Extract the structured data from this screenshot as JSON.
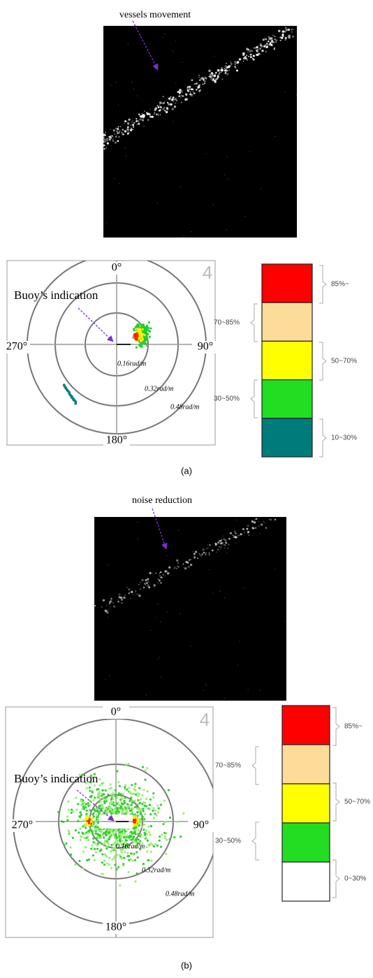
{
  "panels": [
    {
      "image_annotation": "vessels movement",
      "polar": {
        "north": "0°",
        "east": "90°",
        "south": "180°",
        "west": "270°",
        "rings": [
          "0.16rad/m",
          "0.32rad/m",
          "0.48rad/m"
        ],
        "annotation": "Buoy’s indication",
        "corner_mark": "4"
      },
      "legend": {
        "right": [
          "85%~",
          "50~70%",
          "10~30%"
        ],
        "left": [
          "70~85%",
          "30~50%"
        ]
      },
      "caption": "(a)"
    },
    {
      "image_annotation": "noise reduction",
      "polar": {
        "north": "0°",
        "east": "90°",
        "south": "180°",
        "west": "270°",
        "rings": [
          "0.16rad/m",
          "0.32rad/m",
          "0.48rad/m"
        ],
        "annotation": "Buoy’s indication",
        "corner_mark": "4"
      },
      "legend": {
        "right": [
          "85%~",
          "50~70%",
          "0~30%"
        ],
        "left": [
          "70~85%",
          "30~50%"
        ]
      },
      "caption": "(b)"
    }
  ]
}
